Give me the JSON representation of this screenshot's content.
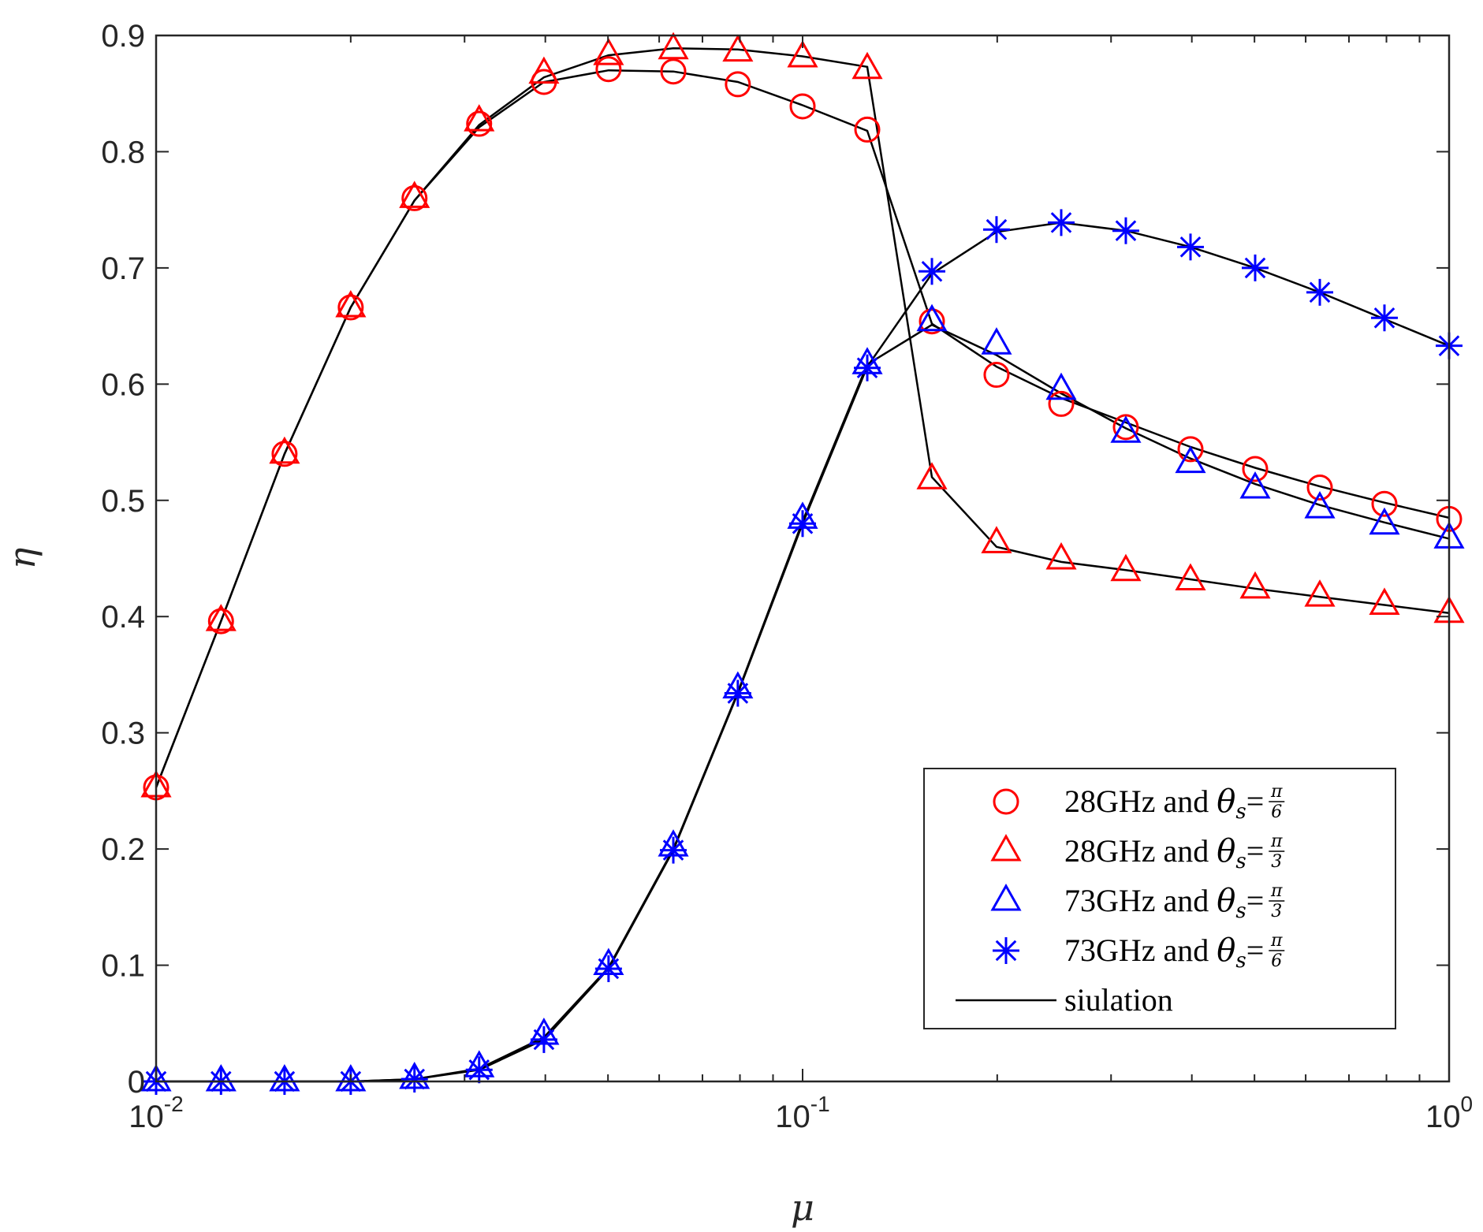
{
  "chart_data": {
    "type": "line",
    "title": "",
    "xlabel": "μ",
    "ylabel": "η",
    "xscale": "log",
    "xlim": [
      0.01,
      1
    ],
    "ylim": [
      0,
      0.9
    ],
    "grid": false,
    "legend_position": "bottom-right",
    "x_ticks": [
      {
        "value": 0.01,
        "base": "10",
        "exp": "-2"
      },
      {
        "value": 0.1,
        "base": "10",
        "exp": "-1"
      },
      {
        "value": 1,
        "base": "10",
        "exp": "0"
      }
    ],
    "y_ticks": [
      "0",
      "0.1",
      "0.2",
      "0.3",
      "0.4",
      "0.5",
      "0.6",
      "0.7",
      "0.8",
      "0.9"
    ],
    "x": [
      0.01,
      0.0126,
      0.0158,
      0.02,
      0.0251,
      0.0316,
      0.0398,
      0.0501,
      0.0631,
      0.0794,
      0.1,
      0.1259,
      0.1585,
      0.1995,
      0.2512,
      0.3162,
      0.3981,
      0.5012,
      0.631,
      0.7943,
      1.0
    ],
    "series": [
      {
        "name": "28GHz and θs=π/6",
        "legend": {
          "prefix": "28GHz and ",
          "theta": "θ",
          "sub": "s",
          "eq": "=",
          "num": "π",
          "den": "6"
        },
        "color": "#ff0000",
        "marker": "circle",
        "values": [
          0.253,
          0.396,
          0.54,
          0.666,
          0.76,
          0.824,
          0.86,
          0.871,
          0.869,
          0.858,
          0.839,
          0.819,
          0.654,
          0.608,
          0.583,
          0.563,
          0.544,
          0.527,
          0.511,
          0.497,
          0.484
        ]
      },
      {
        "name": "28GHz and θs=π/3",
        "legend": {
          "prefix": "28GHz and ",
          "theta": "θ",
          "sub": "s",
          "eq": "=",
          "num": "π",
          "den": "3"
        },
        "color": "#ff0000",
        "marker": "triangle",
        "values": [
          0.253,
          0.396,
          0.54,
          0.666,
          0.76,
          0.826,
          0.867,
          0.883,
          0.888,
          0.886,
          0.881,
          0.871,
          0.518,
          0.463,
          0.449,
          0.439,
          0.431,
          0.424,
          0.417,
          0.41,
          0.403
        ]
      },
      {
        "name": "73GHz and θs=π/3",
        "legend": {
          "prefix": "73GHz and ",
          "theta": "θ",
          "sub": "s",
          "eq": "=",
          "num": "π",
          "den": "3"
        },
        "color": "#0000ff",
        "marker": "triangle",
        "values": [
          0.0,
          0.0,
          0.0,
          0.0,
          0.002,
          0.012,
          0.04,
          0.1,
          0.202,
          0.338,
          0.484,
          0.617,
          0.654,
          0.634,
          0.595,
          0.558,
          0.532,
          0.51,
          0.493,
          0.479,
          0.467
        ]
      },
      {
        "name": "73GHz and θs=π/6",
        "legend": {
          "prefix": "73GHz and ",
          "theta": "θ",
          "sub": "s",
          "eq": "=",
          "num": "π",
          "den": "6"
        },
        "color": "#0000ff",
        "marker": "asterisk",
        "values": [
          0.0,
          0.0,
          0.0,
          0.0,
          0.002,
          0.01,
          0.036,
          0.097,
          0.199,
          0.334,
          0.48,
          0.614,
          0.697,
          0.733,
          0.739,
          0.732,
          0.718,
          0.7,
          0.679,
          0.657,
          0.633
        ]
      }
    ],
    "simulation": {
      "name": "siulation",
      "color": "#000000",
      "lines": [
        {
          "x": [
            0.01,
            0.0126,
            0.0158,
            0.02,
            0.0251,
            0.0316,
            0.0398,
            0.0501,
            0.0631,
            0.0794,
            0.1,
            0.1259,
            0.1585,
            0.1995,
            0.2512,
            0.3162,
            0.3981,
            0.5012,
            0.631,
            0.7943,
            1.0
          ],
          "y": [
            0.253,
            0.396,
            0.54,
            0.666,
            0.758,
            0.821,
            0.86,
            0.87,
            0.869,
            0.86,
            0.84,
            0.818,
            0.652,
            0.615,
            0.588,
            0.567,
            0.546,
            0.528,
            0.512,
            0.498,
            0.485
          ]
        },
        {
          "x": [
            0.01,
            0.0126,
            0.0158,
            0.02,
            0.0251,
            0.0316,
            0.0398,
            0.0501,
            0.0631,
            0.0794,
            0.1,
            0.1259,
            0.1585,
            0.1995,
            0.2512,
            0.3162,
            0.3981,
            0.5012,
            0.631,
            0.7943,
            1.0
          ],
          "y": [
            0.253,
            0.396,
            0.54,
            0.666,
            0.758,
            0.823,
            0.864,
            0.883,
            0.889,
            0.888,
            0.882,
            0.873,
            0.52,
            0.46,
            0.447,
            0.44,
            0.432,
            0.424,
            0.417,
            0.41,
            0.403
          ]
        },
        {
          "x": [
            0.01,
            0.0126,
            0.0158,
            0.02,
            0.0251,
            0.0316,
            0.0398,
            0.0501,
            0.0631,
            0.0794,
            0.1,
            0.1259,
            0.1585,
            0.1995,
            0.2512,
            0.3162,
            0.3981,
            0.5012,
            0.631,
            0.7943,
            1.0
          ],
          "y": [
            0.0,
            0.0,
            0.0,
            0.0,
            0.002,
            0.011,
            0.038,
            0.098,
            0.2,
            0.335,
            0.482,
            0.617,
            0.651,
            0.625,
            0.592,
            0.562,
            0.536,
            0.514,
            0.496,
            0.481,
            0.467
          ]
        },
        {
          "x": [
            0.01,
            0.0126,
            0.0158,
            0.02,
            0.0251,
            0.0316,
            0.0398,
            0.0501,
            0.0631,
            0.0794,
            0.1,
            0.1259,
            0.1585,
            0.1995,
            0.2512,
            0.3162,
            0.3981,
            0.5012,
            0.631,
            0.7943,
            1.0
          ],
          "y": [
            0.0,
            0.0,
            0.0,
            0.0,
            0.002,
            0.01,
            0.036,
            0.097,
            0.199,
            0.334,
            0.48,
            0.615,
            0.695,
            0.731,
            0.739,
            0.732,
            0.718,
            0.7,
            0.679,
            0.656,
            0.633
          ]
        }
      ]
    }
  }
}
